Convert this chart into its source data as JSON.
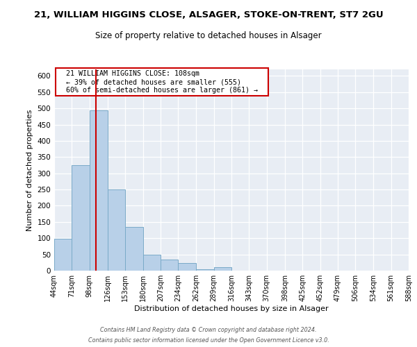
{
  "title": "21, WILLIAM HIGGINS CLOSE, ALSAGER, STOKE-ON-TRENT, ST7 2GU",
  "subtitle": "Size of property relative to detached houses in Alsager",
  "xlabel": "Distribution of detached houses by size in Alsager",
  "ylabel": "Number of detached properties",
  "bar_color": "#b8d0e8",
  "bar_edge_color": "#7aaac8",
  "bins": [
    44,
    71,
    98,
    126,
    153,
    180,
    207,
    234,
    262,
    289,
    316,
    343,
    370,
    398,
    425,
    452,
    479,
    506,
    534,
    561,
    588
  ],
  "counts": [
    98,
    325,
    493,
    250,
    135,
    50,
    35,
    23,
    5,
    10,
    0,
    0,
    0,
    0,
    0,
    0,
    0,
    0,
    0,
    0
  ],
  "tick_labels": [
    "44sqm",
    "71sqm",
    "98sqm",
    "126sqm",
    "153sqm",
    "180sqm",
    "207sqm",
    "234sqm",
    "262sqm",
    "289sqm",
    "316sqm",
    "343sqm",
    "370sqm",
    "398sqm",
    "425sqm",
    "452sqm",
    "479sqm",
    "506sqm",
    "534sqm",
    "561sqm",
    "588sqm"
  ],
  "ylim": [
    0,
    620
  ],
  "yticks": [
    0,
    50,
    100,
    150,
    200,
    250,
    300,
    350,
    400,
    450,
    500,
    550,
    600
  ],
  "vline_x": 108,
  "vline_color": "#cc0000",
  "annotation_text": "  21 WILLIAM HIGGINS CLOSE: 108sqm  \n  ← 39% of detached houses are smaller (555)  \n  60% of semi-detached houses are larger (861) →  ",
  "annotation_box_color": "#ffffff",
  "annotation_box_edge": "#cc0000",
  "bg_color": "#e8edf4",
  "footer1": "Contains HM Land Registry data © Crown copyright and database right 2024.",
  "footer2": "Contains public sector information licensed under the Open Government Licence v3.0."
}
